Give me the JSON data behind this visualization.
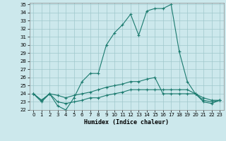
{
  "xlabel": "Humidex (Indice chaleur)",
  "ylabel": "",
  "xlim": [
    -0.5,
    23.5
  ],
  "ylim": [
    22,
    35.2
  ],
  "yticks": [
    22,
    23,
    24,
    25,
    26,
    27,
    28,
    29,
    30,
    31,
    32,
    33,
    34,
    35
  ],
  "xticks": [
    0,
    1,
    2,
    3,
    4,
    5,
    6,
    7,
    8,
    9,
    10,
    11,
    12,
    13,
    14,
    15,
    16,
    17,
    18,
    19,
    20,
    21,
    22,
    23
  ],
  "background_color": "#cce8ec",
  "grid_color": "#a0c8cc",
  "line_color": "#1a7a6e",
  "line1": {
    "x": [
      0,
      1,
      2,
      3,
      4,
      5,
      6,
      7,
      8,
      9,
      10,
      11,
      12,
      13,
      14,
      15,
      16,
      17,
      18,
      19,
      20,
      21,
      22,
      23
    ],
    "y": [
      24.0,
      23.0,
      24.0,
      22.5,
      22.0,
      23.5,
      25.5,
      26.5,
      26.5,
      30.0,
      31.5,
      32.5,
      33.8,
      31.2,
      34.2,
      34.5,
      34.5,
      35.0,
      29.2,
      25.5,
      24.0,
      23.0,
      22.8,
      23.2
    ]
  },
  "line2": {
    "x": [
      0,
      1,
      2,
      3,
      4,
      5,
      6,
      7,
      8,
      9,
      10,
      11,
      12,
      13,
      14,
      15,
      16,
      17,
      18,
      19,
      20,
      21,
      22,
      23
    ],
    "y": [
      24.0,
      23.2,
      24.0,
      23.8,
      23.5,
      23.8,
      24.0,
      24.2,
      24.5,
      24.8,
      25.0,
      25.2,
      25.5,
      25.5,
      25.8,
      26.0,
      24.0,
      24.0,
      24.0,
      24.0,
      24.0,
      23.5,
      23.2,
      23.2
    ]
  },
  "line3": {
    "x": [
      0,
      1,
      2,
      3,
      4,
      5,
      6,
      7,
      8,
      9,
      10,
      11,
      12,
      13,
      14,
      15,
      16,
      17,
      18,
      19,
      20,
      21,
      22,
      23
    ],
    "y": [
      24.0,
      23.2,
      24.0,
      23.0,
      22.8,
      23.0,
      23.2,
      23.5,
      23.5,
      23.8,
      24.0,
      24.2,
      24.5,
      24.5,
      24.5,
      24.5,
      24.5,
      24.5,
      24.5,
      24.5,
      24.0,
      23.2,
      23.0,
      23.2
    ]
  }
}
